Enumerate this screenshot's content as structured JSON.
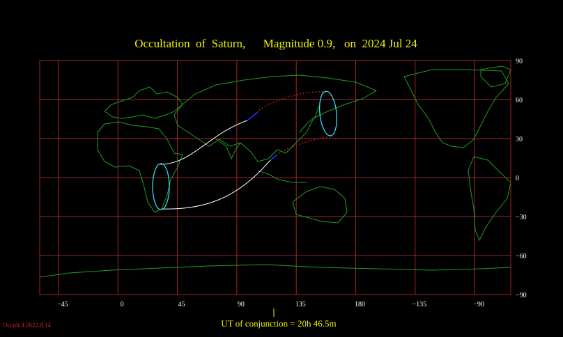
{
  "header": {
    "title": "Occultation  of  Saturn,      Magnitude 0.9,   on  2024 Jul 24"
  },
  "map": {
    "longitude_labels": [
      "−45",
      "0",
      "45",
      "90",
      "135",
      "180",
      "−135",
      "−90"
    ],
    "latitude_labels": [
      "90",
      "60",
      "30",
      "0",
      "−30",
      "−60",
      "−90"
    ]
  },
  "footer": {
    "conjunction": "UT of conjunction = 20h 46.5m",
    "version": "Occult 4.2022.8.14"
  }
}
